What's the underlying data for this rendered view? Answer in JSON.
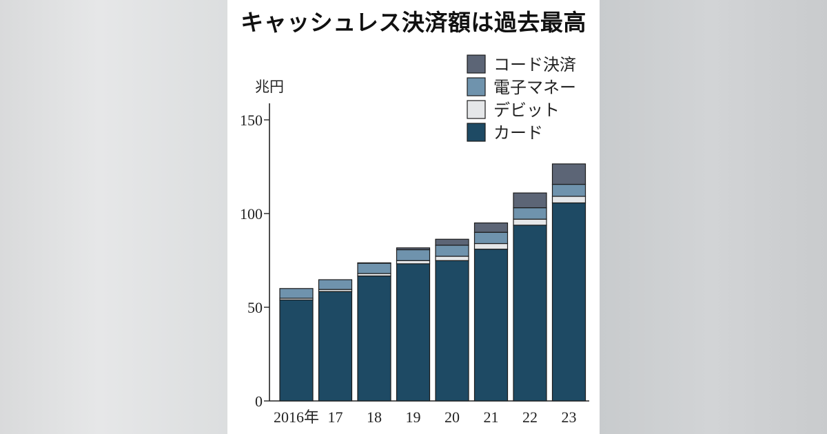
{
  "title": "キャッシュレス決済額は過去最高",
  "colors": {
    "card": "#1e4a64",
    "debit": "#e5e7e9",
    "emoney": "#6f93ad",
    "code": "#5c6576",
    "axis": "#222222"
  },
  "chart_data": {
    "type": "bar",
    "stacked": true,
    "title": "キャッシュレス決済額は過去最高",
    "unit": "兆円",
    "categories": [
      "2016年",
      "17",
      "18",
      "19",
      "20",
      "21",
      "22",
      "23"
    ],
    "ylim": [
      0,
      155
    ],
    "yticks": [
      0,
      50,
      100,
      150
    ],
    "grid": false,
    "legend_position": "top-right",
    "series": [
      {
        "name": "カード",
        "color_key": "card",
        "values": [
          53.9,
          58.4,
          66.7,
          73.2,
          74.9,
          81.0,
          93.8,
          105.7
        ]
      },
      {
        "name": "デビット",
        "color_key": "debit",
        "values": [
          0.9,
          1.1,
          1.3,
          1.7,
          2.3,
          3.0,
          3.2,
          3.5
        ]
      },
      {
        "name": "電子マネー",
        "color_key": "emoney",
        "values": [
          5.2,
          5.2,
          5.5,
          5.8,
          5.9,
          6.0,
          6.1,
          6.4
        ]
      },
      {
        "name": "コード決済",
        "color_key": "code",
        "values": [
          0.0,
          0.0,
          0.2,
          1.0,
          3.2,
          5.0,
          7.9,
          10.9
        ]
      }
    ],
    "legend_order": [
      "コード決済",
      "電子マネー",
      "デビット",
      "カード"
    ]
  }
}
